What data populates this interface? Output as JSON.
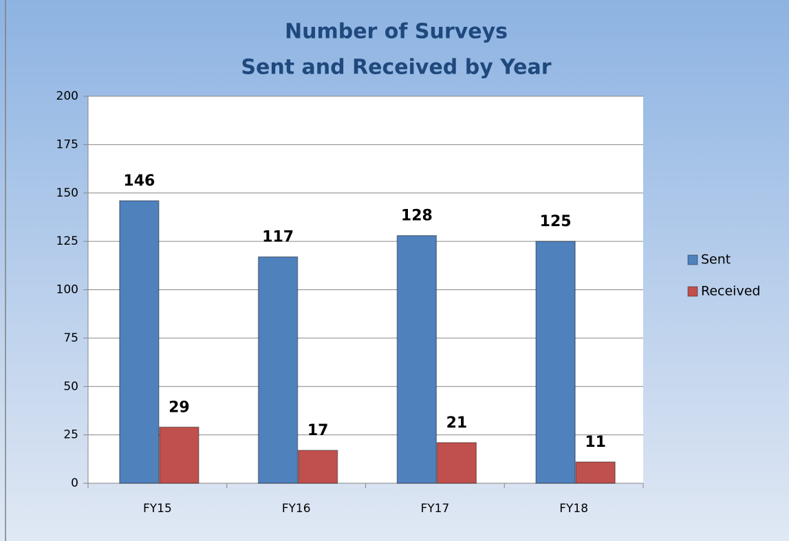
{
  "chart_data": {
    "type": "bar",
    "title": [
      "Number of Surveys",
      "Sent and Received by Year"
    ],
    "categories": [
      "FY15",
      "FY16",
      "FY17",
      "FY18"
    ],
    "series": [
      {
        "name": "Sent",
        "color": "#4f81bd",
        "values": [
          146,
          117,
          128,
          125
        ]
      },
      {
        "name": "Received",
        "color": "#c0504d",
        "values": [
          29,
          17,
          21,
          11
        ]
      }
    ],
    "ylim": [
      0,
      200
    ],
    "yticks": [
      0,
      25,
      50,
      75,
      100,
      125,
      150,
      175,
      200
    ],
    "grid": true,
    "legend": "right"
  }
}
